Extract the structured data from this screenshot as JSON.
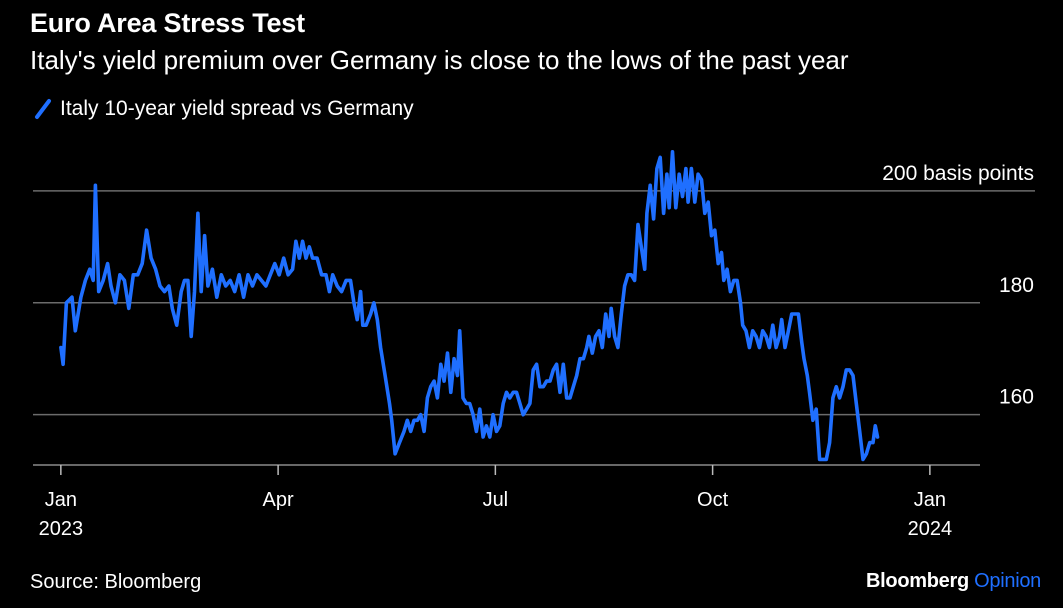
{
  "chart_data": {
    "type": "line",
    "title": "Euro Area Stress Test",
    "subtitle": "Italy's yield premium over Germany is close to the lows of the past year",
    "series": [
      {
        "name": "Italy 10-year yield spread vs Germany",
        "color": "#1f6fff",
        "points": [
          [
            0.0,
            172
          ],
          [
            0.02,
            169
          ],
          [
            0.05,
            180
          ],
          [
            0.1,
            181
          ],
          [
            0.13,
            175
          ],
          [
            0.18,
            181
          ],
          [
            0.22,
            184
          ],
          [
            0.26,
            186
          ],
          [
            0.29,
            184
          ],
          [
            0.31,
            201
          ],
          [
            0.34,
            182
          ],
          [
            0.38,
            184
          ],
          [
            0.42,
            187
          ],
          [
            0.45,
            183
          ],
          [
            0.49,
            180
          ],
          [
            0.53,
            185
          ],
          [
            0.57,
            184
          ],
          [
            0.61,
            179
          ],
          [
            0.65,
            185
          ],
          [
            0.69,
            185
          ],
          [
            0.73,
            187
          ],
          [
            0.77,
            193
          ],
          [
            0.81,
            188
          ],
          [
            0.85,
            186
          ],
          [
            0.89,
            183
          ],
          [
            0.93,
            182
          ],
          [
            0.97,
            183
          ],
          [
            1.0,
            179
          ],
          [
            1.04,
            176
          ],
          [
            1.08,
            182
          ],
          [
            1.11,
            184
          ],
          [
            1.14,
            184
          ],
          [
            1.17,
            174
          ],
          [
            1.2,
            182
          ],
          [
            1.23,
            196
          ],
          [
            1.26,
            182
          ],
          [
            1.29,
            192
          ],
          [
            1.32,
            183
          ],
          [
            1.36,
            186
          ],
          [
            1.4,
            181
          ],
          [
            1.44,
            185
          ],
          [
            1.48,
            183
          ],
          [
            1.52,
            184
          ],
          [
            1.56,
            182
          ],
          [
            1.6,
            185
          ],
          [
            1.64,
            181
          ],
          [
            1.68,
            185
          ],
          [
            1.72,
            183
          ],
          [
            1.76,
            185
          ],
          [
            1.8,
            184
          ],
          [
            1.84,
            183
          ],
          [
            1.88,
            185
          ],
          [
            1.92,
            187
          ],
          [
            1.96,
            185
          ],
          [
            2.0,
            188
          ],
          [
            2.04,
            185
          ],
          [
            2.08,
            186
          ],
          [
            2.11,
            191
          ],
          [
            2.14,
            188
          ],
          [
            2.17,
            191
          ],
          [
            2.2,
            188
          ],
          [
            2.23,
            190
          ],
          [
            2.26,
            188
          ],
          [
            2.3,
            188
          ],
          [
            2.34,
            185
          ],
          [
            2.38,
            185
          ],
          [
            2.41,
            182
          ],
          [
            2.44,
            185
          ],
          [
            2.48,
            183
          ],
          [
            2.52,
            182
          ],
          [
            2.56,
            184
          ],
          [
            2.6,
            184
          ],
          [
            2.63,
            180
          ],
          [
            2.66,
            177
          ],
          [
            2.69,
            182
          ],
          [
            2.71,
            176
          ],
          [
            2.74,
            176
          ],
          [
            2.78,
            178
          ],
          [
            2.81,
            180
          ],
          [
            2.84,
            177
          ],
          [
            2.87,
            172
          ],
          [
            2.91,
            167
          ],
          [
            2.95,
            162
          ],
          [
            2.97,
            159
          ],
          [
            3.0,
            153
          ],
          [
            3.04,
            155
          ],
          [
            3.08,
            157
          ],
          [
            3.11,
            159
          ],
          [
            3.14,
            157
          ],
          [
            3.17,
            159
          ],
          [
            3.2,
            159
          ],
          [
            3.23,
            160
          ],
          [
            3.26,
            157
          ],
          [
            3.29,
            163
          ],
          [
            3.32,
            165
          ],
          [
            3.35,
            166
          ],
          [
            3.38,
            163
          ],
          [
            3.41,
            169
          ],
          [
            3.44,
            166
          ],
          [
            3.47,
            171
          ],
          [
            3.5,
            164
          ],
          [
            3.53,
            170
          ],
          [
            3.56,
            167
          ],
          [
            3.58,
            175
          ],
          [
            3.61,
            163
          ],
          [
            3.64,
            162
          ],
          [
            3.67,
            162
          ],
          [
            3.7,
            160
          ],
          [
            3.73,
            157
          ],
          [
            3.76,
            161
          ],
          [
            3.79,
            156
          ],
          [
            3.82,
            158
          ],
          [
            3.85,
            156
          ],
          [
            3.88,
            160
          ],
          [
            3.91,
            157
          ],
          [
            3.94,
            158
          ],
          [
            3.97,
            162
          ],
          [
            4.0,
            164
          ],
          [
            4.03,
            163
          ],
          [
            4.06,
            164
          ],
          [
            4.09,
            164
          ],
          [
            4.12,
            162
          ],
          [
            4.15,
            160
          ],
          [
            4.18,
            161
          ],
          [
            4.21,
            162
          ],
          [
            4.24,
            168
          ],
          [
            4.27,
            169
          ],
          [
            4.3,
            165
          ],
          [
            4.33,
            165
          ],
          [
            4.36,
            166
          ],
          [
            4.39,
            166
          ],
          [
            4.42,
            168
          ],
          [
            4.45,
            169
          ],
          [
            4.48,
            164
          ],
          [
            4.51,
            169
          ],
          [
            4.54,
            163
          ],
          [
            4.57,
            163
          ],
          [
            4.6,
            165
          ],
          [
            4.63,
            167
          ],
          [
            4.66,
            170
          ],
          [
            4.69,
            170
          ],
          [
            4.72,
            172
          ],
          [
            4.74,
            174
          ],
          [
            4.77,
            171
          ],
          [
            4.8,
            174
          ],
          [
            4.83,
            175
          ],
          [
            4.86,
            172
          ],
          [
            4.89,
            178
          ],
          [
            4.92,
            174
          ],
          [
            4.94,
            179
          ],
          [
            4.97,
            174
          ],
          [
            5.0,
            172
          ],
          [
            5.03,
            178
          ],
          [
            5.06,
            183
          ],
          [
            5.09,
            185
          ],
          [
            5.12,
            185
          ],
          [
            5.15,
            184
          ],
          [
            5.18,
            194
          ],
          [
            5.21,
            190
          ],
          [
            5.24,
            186
          ],
          [
            5.26,
            196
          ],
          [
            5.29,
            201
          ],
          [
            5.32,
            195
          ],
          [
            5.35,
            204
          ],
          [
            5.38,
            206
          ],
          [
            5.41,
            196
          ],
          [
            5.44,
            203
          ],
          [
            5.46,
            197
          ],
          [
            5.49,
            207
          ],
          [
            5.52,
            197
          ],
          [
            5.55,
            203
          ],
          [
            5.58,
            199
          ],
          [
            5.61,
            204
          ],
          [
            5.63,
            198
          ],
          [
            5.66,
            204
          ],
          [
            5.69,
            198
          ],
          [
            5.72,
            203
          ],
          [
            5.75,
            202
          ],
          [
            5.78,
            196
          ],
          [
            5.81,
            198
          ],
          [
            5.84,
            192
          ],
          [
            5.87,
            193
          ],
          [
            5.9,
            187
          ],
          [
            5.93,
            189
          ],
          [
            5.95,
            184
          ],
          [
            5.98,
            186
          ],
          [
            6.01,
            182
          ],
          [
            6.04,
            184
          ],
          [
            6.07,
            184
          ],
          [
            6.1,
            180
          ],
          [
            6.12,
            176
          ],
          [
            6.15,
            175
          ],
          [
            6.18,
            172
          ],
          [
            6.21,
            175
          ],
          [
            6.24,
            174
          ],
          [
            6.27,
            172
          ],
          [
            6.3,
            175
          ],
          [
            6.33,
            174
          ],
          [
            6.36,
            172
          ],
          [
            6.39,
            176
          ],
          [
            6.42,
            172
          ],
          [
            6.45,
            174
          ],
          [
            6.47,
            177
          ],
          [
            6.5,
            172
          ],
          [
            6.53,
            175
          ],
          [
            6.56,
            178
          ],
          [
            6.59,
            178
          ],
          [
            6.62,
            178
          ],
          [
            6.65,
            173
          ],
          [
            6.67,
            170
          ],
          [
            6.7,
            167
          ],
          [
            6.72,
            164
          ],
          [
            6.75,
            159
          ],
          [
            6.78,
            161
          ],
          [
            6.81,
            152
          ],
          [
            6.84,
            152
          ],
          [
            6.87,
            152
          ],
          [
            6.9,
            155
          ],
          [
            6.93,
            163
          ],
          [
            6.96,
            165
          ],
          [
            6.99,
            163
          ],
          [
            7.02,
            165
          ],
          [
            7.05,
            168
          ],
          [
            7.08,
            168
          ],
          [
            7.11,
            167
          ],
          [
            7.14,
            162
          ],
          [
            7.17,
            157
          ],
          [
            7.2,
            152
          ],
          [
            7.23,
            153
          ],
          [
            7.26,
            155
          ],
          [
            7.29,
            155
          ],
          [
            7.31,
            158
          ],
          [
            7.33,
            156
          ]
        ]
      }
    ],
    "x_axis": {
      "ticks": [
        {
          "value": 0,
          "label1": "Jan",
          "label2": "2023"
        },
        {
          "value": 1.95,
          "label1": "Apr",
          "label2": ""
        },
        {
          "value": 3.9,
          "label1": "Jul",
          "label2": ""
        },
        {
          "value": 5.85,
          "label1": "Oct",
          "label2": ""
        },
        {
          "value": 7.8,
          "label1": "Jan",
          "label2": "2024"
        }
      ],
      "xlim": [
        -0.25,
        8.25
      ]
    },
    "y_axis": {
      "ylim": [
        151,
        210
      ],
      "gridlines": [
        160,
        180,
        200
      ],
      "labels": [
        "160",
        "180",
        "200 basis points"
      ]
    }
  },
  "legend": {
    "label": "Italy 10-year yield spread vs Germany"
  },
  "source": "Source: Bloomberg",
  "brand": {
    "name": "Bloomberg",
    "suffix": "Opinion"
  }
}
